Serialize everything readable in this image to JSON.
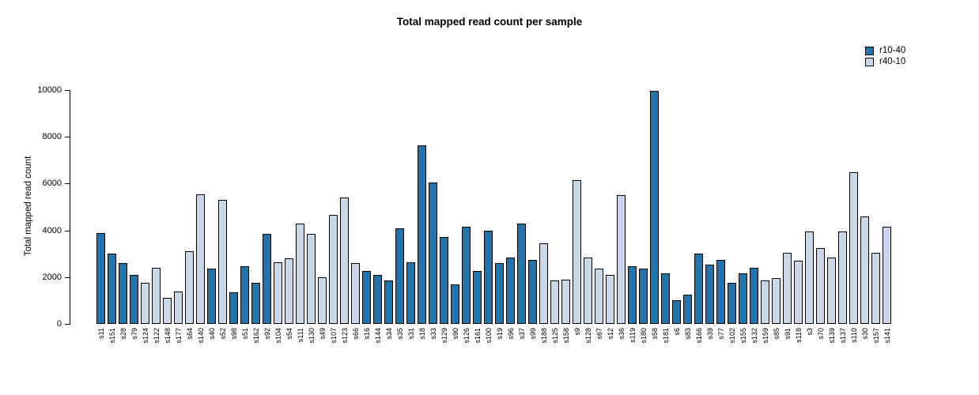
{
  "title": "Total mapped read count per sample",
  "y_axis": {
    "label": "Total mapped read count",
    "ticks": [
      "0",
      "2000",
      "4000",
      "6000",
      "8000",
      "10000"
    ]
  },
  "legend": {
    "items": [
      {
        "label": "r10-40",
        "color": "#1f74ad"
      },
      {
        "label": "r40-10",
        "color": "#c8d7ea"
      }
    ]
  },
  "chart_data": {
    "type": "bar",
    "title": "Total mapped read count per sample",
    "xlabel": "",
    "ylabel": "Total mapped read count",
    "ylim": [
      0,
      10000
    ],
    "yticks": [
      0,
      2000,
      4000,
      6000,
      8000,
      10000
    ],
    "grid": false,
    "legend_position": "top-right",
    "colors": {
      "r10-40": "#1f74ad",
      "r40-10": "#c8d7ea"
    },
    "bar_border_color": "#000000",
    "categories": [
      "s11",
      "s151",
      "s28",
      "s79",
      "s124",
      "s122",
      "s148",
      "s177",
      "s64",
      "s140",
      "s40",
      "s52",
      "s98",
      "s51",
      "s162",
      "s92",
      "s104",
      "s54",
      "s111",
      "s130",
      "s49",
      "s107",
      "s123",
      "s66",
      "s16",
      "s144",
      "s34",
      "s35",
      "s31",
      "s18",
      "s33",
      "s129",
      "s90",
      "s126",
      "s161",
      "s100",
      "s19",
      "s96",
      "s37",
      "s99",
      "s188",
      "s125",
      "s158",
      "s9",
      "s128",
      "s67",
      "s12",
      "s36",
      "s119",
      "s180",
      "s58",
      "s181",
      "s6",
      "s83",
      "s166",
      "s39",
      "s77",
      "s102",
      "s155",
      "s132",
      "s159",
      "s85",
      "s91",
      "s118",
      "s3",
      "s70",
      "s139",
      "s137",
      "s110",
      "s30",
      "s157",
      "s141"
    ],
    "values": [
      3900,
      3000,
      2600,
      2100,
      1750,
      2400,
      1100,
      1400,
      3100,
      5550,
      2350,
      5300,
      1350,
      2450,
      1750,
      3850,
      2650,
      2800,
      4300,
      3850,
      2000,
      4650,
      5400,
      2600,
      2250,
      2100,
      1850,
      4100,
      2650,
      7650,
      6050,
      3700,
      1700,
      4150,
      2250,
      4000,
      2600,
      2850,
      4300,
      2750,
      3450,
      1850,
      1900,
      6150,
      2850,
      2350,
      2100,
      5500,
      2450,
      2350,
      9950,
      2150,
      1000,
      1250,
      3000,
      2550,
      2750,
      1750,
      2150,
      2400,
      1850,
      1950,
      3050,
      2700,
      3950,
      3250,
      2850,
      3950,
      6500,
      4600,
      3050,
      4150
    ],
    "groups": [
      "r10-40",
      "r10-40",
      "r10-40",
      "r10-40",
      "r40-10",
      "r40-10",
      "r40-10",
      "r40-10",
      "r40-10",
      "r40-10",
      "r10-40",
      "r40-10",
      "r10-40",
      "r10-40",
      "r10-40",
      "r10-40",
      "r40-10",
      "r40-10",
      "r40-10",
      "r40-10",
      "r40-10",
      "r40-10",
      "r40-10",
      "r40-10",
      "r10-40",
      "r10-40",
      "r10-40",
      "r10-40",
      "r10-40",
      "r10-40",
      "r10-40",
      "r10-40",
      "r10-40",
      "r10-40",
      "r10-40",
      "r10-40",
      "r10-40",
      "r10-40",
      "r10-40",
      "r10-40",
      "r40-10",
      "r40-10",
      "r40-10",
      "r40-10",
      "r40-10",
      "r40-10",
      "r40-10",
      "r40-10",
      "r10-40",
      "r10-40",
      "r10-40",
      "r10-40",
      "r10-40",
      "r10-40",
      "r10-40",
      "r10-40",
      "r10-40",
      "r10-40",
      "r10-40",
      "r10-40",
      "r40-10",
      "r40-10",
      "r40-10",
      "r40-10",
      "r40-10",
      "r40-10",
      "r40-10",
      "r40-10",
      "r40-10",
      "r40-10",
      "r40-10",
      "r40-10"
    ]
  }
}
